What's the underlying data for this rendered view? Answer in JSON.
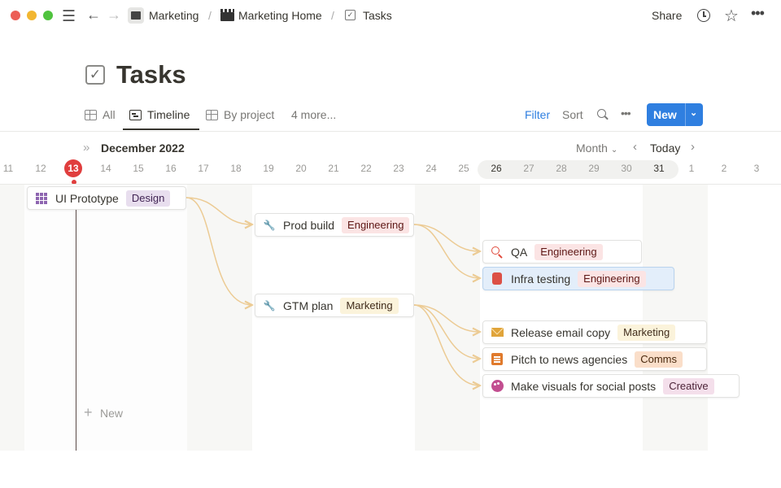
{
  "topbar": {
    "breadcrumbs": [
      {
        "label": "Marketing",
        "icon": "clapperboard-icon"
      },
      {
        "label": "Marketing Home",
        "icon": "clapper-icon"
      },
      {
        "label": "Tasks",
        "icon": "checkbox-icon"
      }
    ],
    "share_label": "Share"
  },
  "page": {
    "title": "Tasks"
  },
  "views": {
    "tabs": [
      {
        "label": "All"
      },
      {
        "label": "Timeline",
        "active": true
      },
      {
        "label": "By project"
      }
    ],
    "more": "4 more...",
    "filter": "Filter",
    "sort": "Sort",
    "new_label": "New"
  },
  "timeline": {
    "month": "December 2022",
    "scale": "Month",
    "today": "Today",
    "today_date": "13",
    "days": [
      "11",
      "12",
      "13",
      "14",
      "15",
      "16",
      "17",
      "18",
      "19",
      "20",
      "21",
      "22",
      "23",
      "24",
      "25",
      "26",
      "27",
      "28",
      "29",
      "30",
      "31",
      "1",
      "2",
      "3"
    ],
    "new_label": "New",
    "tasks": [
      {
        "name": "UI Prototype",
        "tag": "Design",
        "icon": "grid-icon"
      },
      {
        "name": "Prod build",
        "tag": "Engineering",
        "icon": "wrench-icon"
      },
      {
        "name": "QA",
        "tag": "Engineering",
        "icon": "magnifier-icon"
      },
      {
        "name": "Infra testing",
        "tag": "Engineering",
        "icon": "jar-icon"
      },
      {
        "name": "GTM plan",
        "tag": "Marketing",
        "icon": "wrench-icon"
      },
      {
        "name": "Release email copy",
        "tag": "Marketing",
        "icon": "envelope-icon"
      },
      {
        "name": "Pitch to news agencies",
        "tag": "Comms",
        "icon": "newspaper-icon"
      },
      {
        "name": "Make visuals for social posts",
        "tag": "Creative",
        "icon": "palette-icon"
      }
    ]
  },
  "colors": {
    "accent": "#2f7fe0",
    "today": "#e03e3e",
    "connector": "#eccb94"
  }
}
